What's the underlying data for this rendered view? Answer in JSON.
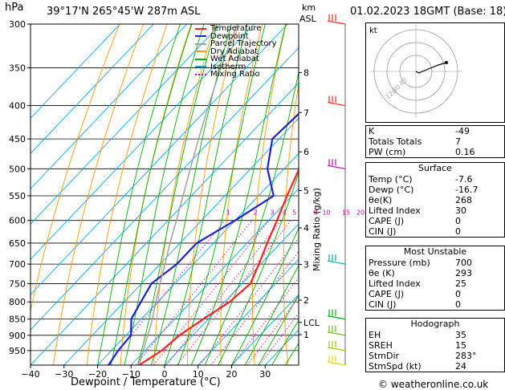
{
  "header": {
    "hpa_unit": "hPa",
    "location": "39°17'N  265°45'W  287m  ASL",
    "km_unit": "km",
    "asl_unit": "ASL",
    "datetime": "01.02.2023  18GMT  (Base: 18)"
  },
  "colors": {
    "temperature": "#ff2020",
    "dewpoint": "#2020d0",
    "parcel": "#a0a0a0",
    "dry_adiabat": "#ff9900",
    "wet_adiabat": "#00b000",
    "isotherm": "#00aaff",
    "mixing_ratio": "#cc00aa"
  },
  "legend": [
    {
      "label": "Temperature",
      "color": "#ff2020",
      "style": "solid"
    },
    {
      "label": "Dewpoint",
      "color": "#2020d0",
      "style": "solid"
    },
    {
      "label": "Parcel Trajectory",
      "color": "#a0a0a0",
      "style": "solid"
    },
    {
      "label": "Dry Adiabat",
      "color": "#ff9900",
      "style": "solid"
    },
    {
      "label": "Wet Adiabat",
      "color": "#00b000",
      "style": "solid"
    },
    {
      "label": "Isotherm",
      "color": "#00aaff",
      "style": "solid"
    },
    {
      "label": "Mixing Ratio",
      "color": "#cc00aa",
      "style": "dotted"
    }
  ],
  "chart_data": {
    "type": "line",
    "subtype": "skew-T log-P diagram",
    "xlabel": "Dewpoint / Temperature (°C)",
    "right_label": "Mixing Ratio (g/kg)",
    "x_ticks": [
      -40,
      -30,
      -20,
      -10,
      0,
      10,
      20,
      30
    ],
    "xlim": [
      -40,
      40
    ],
    "pressure_ticks": [
      300,
      350,
      400,
      450,
      500,
      550,
      600,
      650,
      700,
      750,
      800,
      850,
      900,
      950
    ],
    "ylim_hpa": [
      300,
      1000
    ],
    "y_scale": "log",
    "km_ticks": [
      {
        "label": "8",
        "p": 356
      },
      {
        "label": "7",
        "p": 410
      },
      {
        "label": "6",
        "p": 471
      },
      {
        "label": "5",
        "p": 540
      },
      {
        "label": "4",
        "p": 616
      },
      {
        "label": "3",
        "p": 701
      },
      {
        "label": "2",
        "p": 795
      },
      {
        "label": "LCL",
        "p": 860
      },
      {
        "label": "1",
        "p": 898
      }
    ],
    "mixing_ratio_labels": [
      "1",
      "2",
      "3",
      "4",
      "5",
      "8",
      "10",
      "15",
      "20",
      "25"
    ],
    "mixing_ratio_label_p": 591,
    "series": [
      {
        "name": "Temperature",
        "color": "#ff2020",
        "points": [
          [
            1000,
            -7.6
          ],
          [
            950,
            -5.0
          ],
          [
            900,
            -4.0
          ],
          [
            850,
            -1.5
          ],
          [
            800,
            1.5
          ],
          [
            750,
            2.5
          ],
          [
            700,
            -0.5
          ],
          [
            650,
            -4.0
          ],
          [
            600,
            -7.5
          ],
          [
            550,
            -11.5
          ],
          [
            500,
            -15.5
          ],
          [
            450,
            -20.0
          ],
          [
            400,
            -24.5
          ],
          [
            350,
            -30.5
          ],
          [
            300,
            -37.5
          ]
        ]
      },
      {
        "name": "Dewpoint",
        "color": "#2020d0",
        "points": [
          [
            1000,
            -16.7
          ],
          [
            950,
            -18.0
          ],
          [
            900,
            -18.5
          ],
          [
            850,
            -23.0
          ],
          [
            800,
            -25.0
          ],
          [
            750,
            -27.0
          ],
          [
            700,
            -25.0
          ],
          [
            650,
            -25.0
          ],
          [
            600,
            -20.0
          ],
          [
            550,
            -15.5
          ],
          [
            500,
            -25.0
          ],
          [
            450,
            -32.0
          ],
          [
            400,
            -31.0
          ],
          [
            350,
            -37.0
          ],
          [
            300,
            -39.0
          ]
        ]
      },
      {
        "name": "Parcel Trajectory",
        "color": "#a0a0a0",
        "points": [
          [
            1000,
            -7.6
          ],
          [
            950,
            -10.5
          ],
          [
            900,
            -13.5
          ],
          [
            860,
            -16.0
          ],
          [
            800,
            -20.5
          ],
          [
            750,
            -24.5
          ],
          [
            700,
            -28.5
          ],
          [
            650,
            -33.0
          ],
          [
            600,
            -37.5
          ],
          [
            550,
            -42.5
          ],
          [
            500,
            -48.0
          ],
          [
            450,
            -54.0
          ],
          [
            400,
            -60.5
          ],
          [
            350,
            -67.5
          ],
          [
            300,
            -75.0
          ]
        ]
      }
    ]
  },
  "hodograph": {
    "unit_label": "kt",
    "ring_labels": [
      "40",
      "80",
      "120"
    ]
  },
  "indices": [
    {
      "label": "K",
      "value": "-49"
    },
    {
      "label": "Totals Totals",
      "value": "7"
    },
    {
      "label": "PW (cm)",
      "value": "0.16"
    }
  ],
  "surface": {
    "title": "Surface",
    "rows": [
      {
        "label": "Temp (°C)",
        "value": "-7.6"
      },
      {
        "label": "Dewp (°C)",
        "value": "-16.7"
      },
      {
        "label": "θe(K)",
        "value": "268"
      },
      {
        "label": "Lifted Index",
        "value": "30"
      },
      {
        "label": "CAPE (J)",
        "value": "0"
      },
      {
        "label": "CIN (J)",
        "value": "0"
      }
    ]
  },
  "most_unstable": {
    "title": "Most Unstable",
    "rows": [
      {
        "label": "Pressure (mb)",
        "value": "700"
      },
      {
        "label": "θe (K)",
        "value": "293"
      },
      {
        "label": "Lifted Index",
        "value": "25"
      },
      {
        "label": "CAPE (J)",
        "value": "0"
      },
      {
        "label": "CIN (J)",
        "value": "0"
      }
    ]
  },
  "hodograph_table": {
    "title": "Hodograph",
    "rows": [
      {
        "label": "EH",
        "value": "35"
      },
      {
        "label": "SREH",
        "value": "15"
      },
      {
        "label": "StmDir",
        "value": "283°"
      },
      {
        "label": "StmSpd (kt)",
        "value": "24"
      }
    ]
  },
  "footer": {
    "copyright": "© weatheronline.co.uk"
  }
}
